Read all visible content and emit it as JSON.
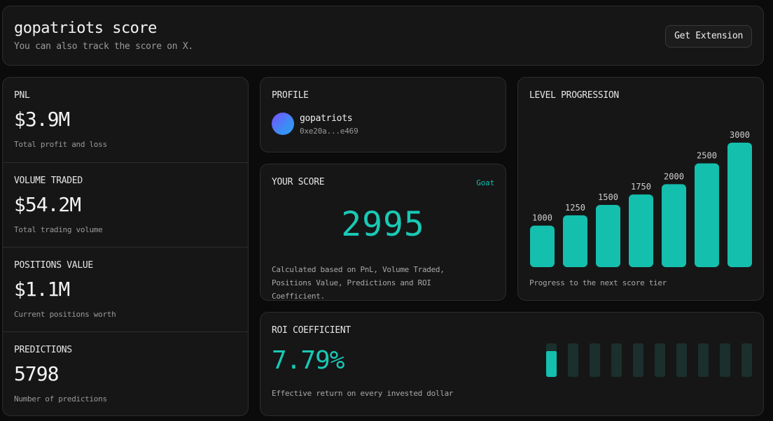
{
  "header": {
    "title": "gopatriots score",
    "subtitle": "You can also track the score on X.",
    "button_label": "Get Extension"
  },
  "stats": [
    {
      "label": "PNL",
      "value": "$3.9M",
      "desc": "Total profit and loss"
    },
    {
      "label": "VOLUME TRADED",
      "value": "$54.2M",
      "desc": "Total trading volume"
    },
    {
      "label": "POSITIONS VALUE",
      "value": "$1.1M",
      "desc": "Current positions worth"
    },
    {
      "label": "PREDICTIONS",
      "value": "5798",
      "desc": "Number of predictions"
    }
  ],
  "profile": {
    "label": "PROFILE",
    "name": "gopatriots",
    "address": "0xe20a...e469"
  },
  "score": {
    "label": "YOUR SCORE",
    "tier": "Goat",
    "value": "2995",
    "desc": "Calculated based on PnL, Volume Traded, Positions Value, Predictions and ROI Coefficient."
  },
  "level": {
    "label": "LEVEL PROGRESSION",
    "desc": "Progress to the next score tier"
  },
  "roi": {
    "label": "ROI COEFFICIENT",
    "value": "7.79%",
    "desc": "Effective return on every invested dollar",
    "fill_fraction": 0.0779
  },
  "colors": {
    "accent": "#14bfae",
    "card_bg": "#161617",
    "border": "#2c2c2e"
  },
  "chart_data": {
    "type": "bar",
    "categories": [
      "1000",
      "1250",
      "1500",
      "1750",
      "2000",
      "2500",
      "3000"
    ],
    "values": [
      1000,
      1250,
      1500,
      1750,
      2000,
      2500,
      3000
    ],
    "title": "LEVEL PROGRESSION",
    "ylim": [
      0,
      3000
    ],
    "grid": false
  }
}
